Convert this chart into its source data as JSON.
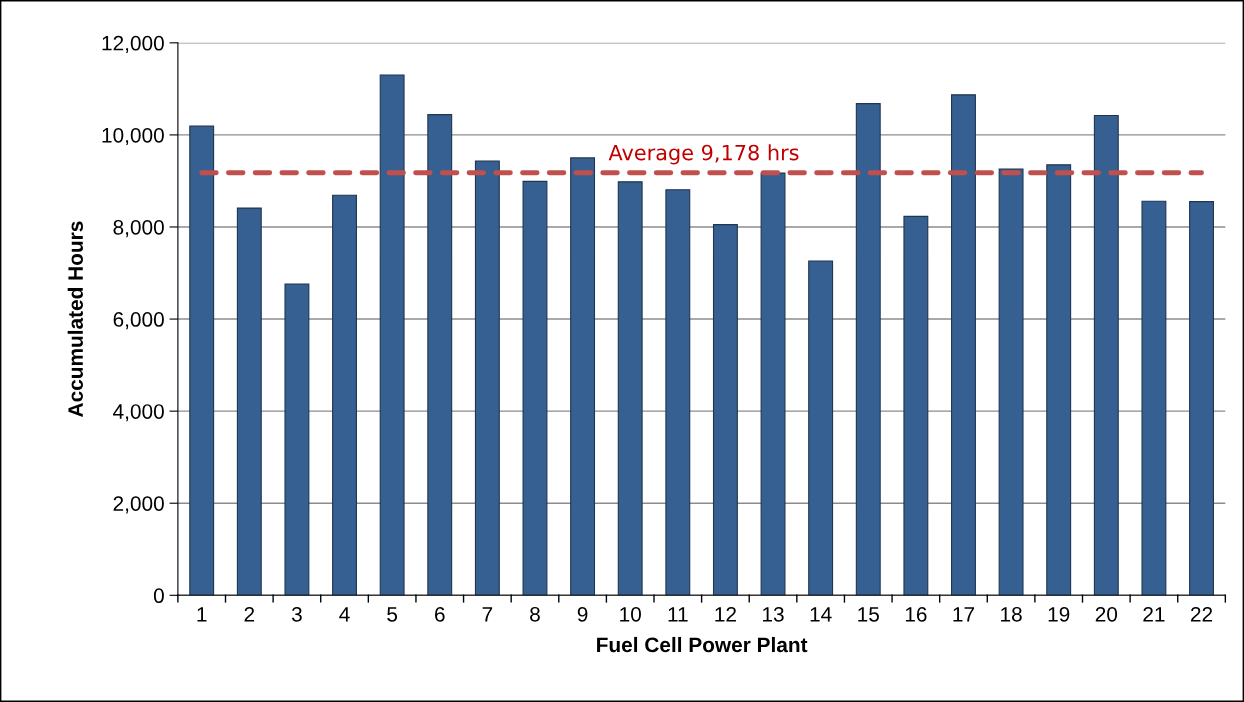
{
  "chart_data": {
    "type": "bar",
    "xlabel": "Fuel Cell Power Plant",
    "ylabel": "Accumulated Hours",
    "categories": [
      "1",
      "2",
      "3",
      "4",
      "5",
      "6",
      "7",
      "8",
      "9",
      "10",
      "11",
      "12",
      "13",
      "14",
      "15",
      "16",
      "17",
      "18",
      "19",
      "20",
      "21",
      "22"
    ],
    "values": [
      10190,
      8410,
      6760,
      8690,
      11300,
      10440,
      9430,
      8990,
      9500,
      8980,
      8810,
      8050,
      9170,
      7260,
      10680,
      8230,
      10870,
      9260,
      9350,
      10420,
      8560,
      8550
    ],
    "color": "#376092",
    "ylim": [
      0,
      12000
    ],
    "yticks": [
      {
        "value": 0,
        "label": "0"
      },
      {
        "value": 2000,
        "label": "2,000"
      },
      {
        "value": 4000,
        "label": "4,000"
      },
      {
        "value": 6000,
        "label": "6,000"
      },
      {
        "value": 8000,
        "label": "8,000"
      },
      {
        "value": 10000,
        "label": "10,000"
      },
      {
        "value": 12000,
        "label": "12,000"
      }
    ],
    "grid": "y",
    "legend": false,
    "ref_lines": [
      {
        "axis": "y",
        "value": 9178,
        "label": "Average 9,178 hrs",
        "color": "#c0504d",
        "line_style": "dashed"
      }
    ]
  }
}
